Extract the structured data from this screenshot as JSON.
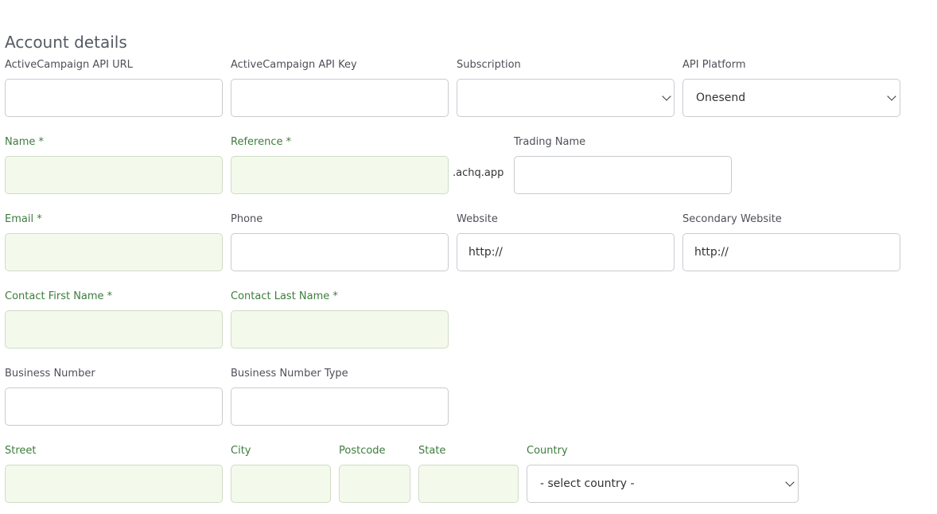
{
  "title": "Account details",
  "fields": {
    "api_url": {
      "label": "ActiveCampaign API URL",
      "value": ""
    },
    "api_key": {
      "label": "ActiveCampaign API Key",
      "value": ""
    },
    "subscription": {
      "label": "Subscription",
      "value": ""
    },
    "api_platform": {
      "label": "API Platform",
      "value": "Onesend"
    },
    "name": {
      "label": "Name *",
      "value": ""
    },
    "reference": {
      "label": "Reference *",
      "value": "",
      "suffix": ".achq.app"
    },
    "trading_name": {
      "label": "Trading Name",
      "value": ""
    },
    "email": {
      "label": "Email *",
      "value": ""
    },
    "phone": {
      "label": "Phone",
      "value": ""
    },
    "website": {
      "label": "Website",
      "value": "http://"
    },
    "secondary_website": {
      "label": "Secondary Website",
      "value": "http://"
    },
    "contact_first_name": {
      "label": "Contact First Name *",
      "value": ""
    },
    "contact_last_name": {
      "label": "Contact Last Name *",
      "value": ""
    },
    "business_number": {
      "label": "Business Number",
      "value": ""
    },
    "business_number_type": {
      "label": "Business Number Type",
      "value": ""
    },
    "street": {
      "label": "Street",
      "value": ""
    },
    "city": {
      "label": "City",
      "value": ""
    },
    "postcode": {
      "label": "Postcode",
      "value": ""
    },
    "state": {
      "label": "State",
      "value": ""
    },
    "country": {
      "label": "Country",
      "value": "- select country -"
    }
  },
  "colors": {
    "required_label": "#3d7d3d",
    "required_fill": "#f3faec"
  }
}
